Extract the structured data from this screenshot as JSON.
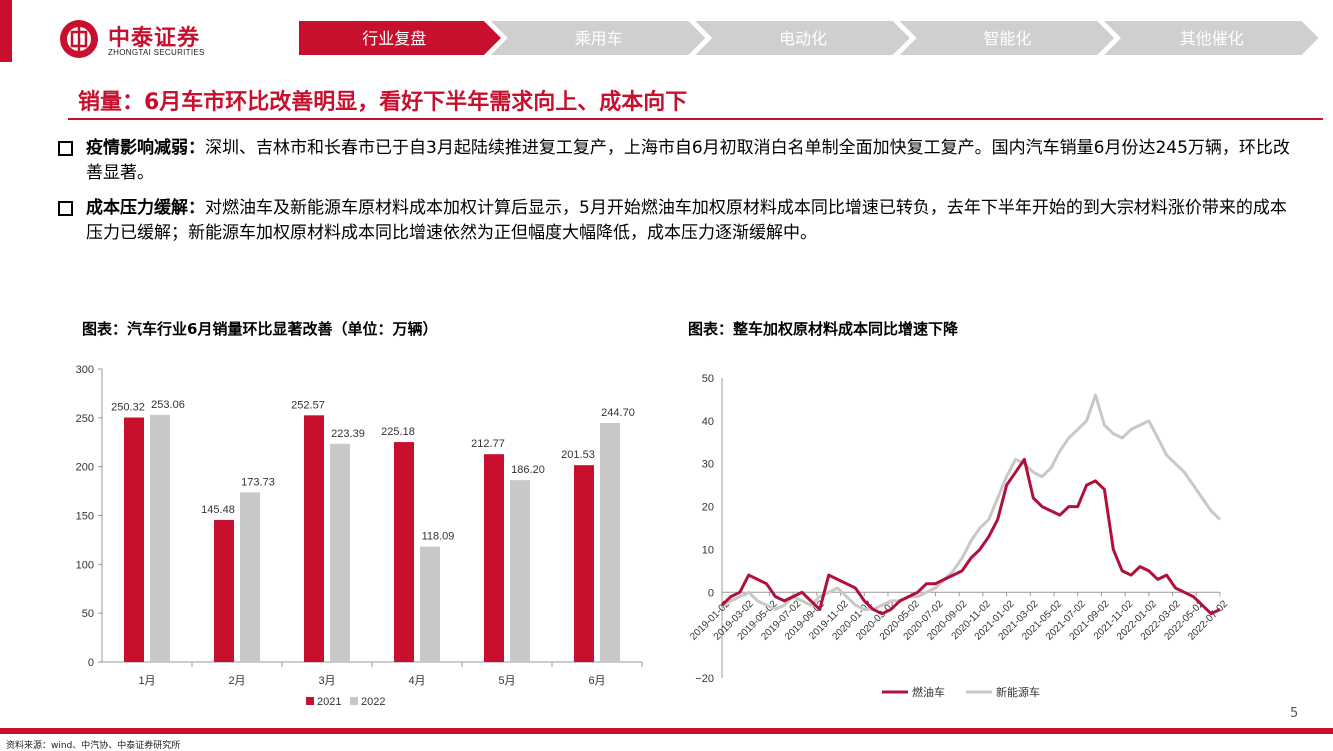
{
  "logo": {
    "name": "中泰证券",
    "sub": "ZHONGTAI SECURITIES"
  },
  "nav": {
    "tabs": [
      "行业复盘",
      "乘用车",
      "电动化",
      "智能化",
      "其他催化"
    ],
    "active": 0
  },
  "headline": "销量：6月车市环比改善明显，看好下半年需求向上、成本向下",
  "bullets": [
    {
      "bold": "疫情影响减弱：",
      "text": "深圳、吉林市和长春市已于自3月起陆续推进复工复产，上海市自6月初取消白名单制全面加快复工复产。国内汽车销量6月份达245万辆，环比改善显著。"
    },
    {
      "bold": "成本压力缓解：",
      "text": "对燃油车及新能源车原材料成本加权计算后显示，5月开始燃油车加权原材料成本同比增速已转负，去年下半年开始的到大宗材料涨价带来的成本压力已缓解；新能源车加权原材料成本同比增速依然为正但幅度大幅降低，成本压力逐渐缓解中。"
    }
  ],
  "colors": {
    "accent": "#c8102e",
    "gray": "#c8c8c8"
  },
  "chart_data": [
    {
      "type": "bar",
      "title": "图表：汽车行业6月销量环比显著改善（单位：万辆）",
      "categories": [
        "1月",
        "2月",
        "3月",
        "4月",
        "5月",
        "6月"
      ],
      "series": [
        {
          "name": "2021",
          "values": [
            250.32,
            145.48,
            252.57,
            225.18,
            212.77,
            201.53
          ],
          "color": "#c8102e"
        },
        {
          "name": "2022",
          "values": [
            253.06,
            173.73,
            223.39,
            118.09,
            186.2,
            244.7
          ],
          "color": "#c8c8c8"
        }
      ],
      "yticks": [
        "0",
        "50",
        "100",
        "150",
        "200",
        "250",
        "300"
      ],
      "ylim": [
        0,
        300
      ],
      "legend": "bottom"
    },
    {
      "type": "line",
      "title": "图表：整车加权原材料成本同比增速下降",
      "xticks": [
        "2019-01-02",
        "2019-03-02",
        "2019-05-02",
        "2019-07-02",
        "2019-09-02",
        "2019-11-02",
        "2020-01-02",
        "2020-03-02",
        "2020-05-02",
        "2020-07-02",
        "2020-09-02",
        "2020-11-02",
        "2021-01-02",
        "2021-03-02",
        "2021-05-02",
        "2021-07-02",
        "2021-09-02",
        "2021-11-02",
        "2022-01-02",
        "2022-03-02",
        "2022-05-02",
        "2022-07-02"
      ],
      "yticks": [
        "50",
        "40",
        "30",
        "20",
        "10",
        "0",
        "−20"
      ],
      "ylim": [
        -20,
        50
      ],
      "legend": "bottom",
      "series": [
        {
          "name": "燃油车",
          "color": "#b0103a",
          "values": [
            -3,
            -1,
            0,
            4,
            3,
            2,
            -1,
            -2,
            -1,
            0,
            -2,
            -4,
            4,
            3,
            2,
            1,
            -2,
            -4,
            -5,
            -4,
            -2,
            -1,
            0,
            2,
            2,
            3,
            4,
            5,
            8,
            10,
            13,
            17,
            25,
            28,
            31,
            22,
            20,
            19,
            18,
            20,
            20,
            25,
            26,
            24,
            10,
            5,
            4,
            6,
            5,
            3,
            4,
            1,
            0,
            -1,
            -3,
            -5,
            -4
          ]
        },
        {
          "name": "新能源车",
          "color": "#c8c8c8",
          "values": [
            -3,
            -2,
            -1,
            0,
            -2,
            -3,
            -4,
            -3,
            -1,
            -2,
            -3,
            -1,
            0,
            1,
            -1,
            -3,
            -4,
            -4,
            -3,
            -2,
            -2,
            -1,
            -1,
            0,
            1,
            3,
            5,
            8,
            12,
            15,
            17,
            22,
            27,
            31,
            30,
            28,
            27,
            29,
            33,
            36,
            38,
            40,
            46,
            39,
            37,
            36,
            38,
            39,
            40,
            36,
            32,
            30,
            28,
            25,
            22,
            19,
            17
          ]
        }
      ]
    }
  ],
  "source": "资料来源：wind、中汽协、中泰证券研究所",
  "page": "5"
}
